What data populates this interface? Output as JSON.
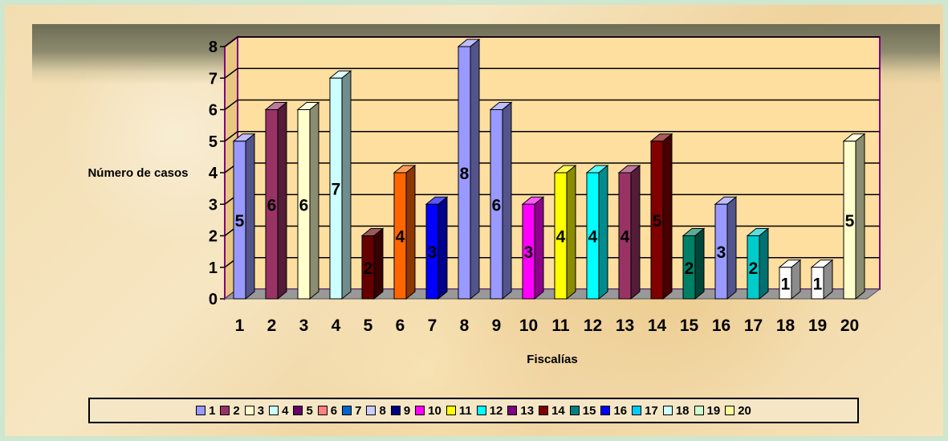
{
  "chart_data": {
    "type": "bar",
    "title": "",
    "xlabel": "Fiscalías",
    "ylabel": "Número de casos",
    "ylim": [
      0,
      8
    ],
    "yticks": [
      "0",
      "1",
      "2",
      "3",
      "4",
      "5",
      "6",
      "7",
      "8"
    ],
    "grid": true,
    "legend_position": "bottom",
    "categories": [
      "1",
      "2",
      "3",
      "4",
      "5",
      "6",
      "7",
      "8",
      "9",
      "10",
      "11",
      "12",
      "13",
      "14",
      "15",
      "16",
      "17",
      "18",
      "19",
      "20"
    ],
    "values": [
      5,
      6,
      6,
      7,
      2,
      4,
      3,
      8,
      6,
      3,
      4,
      4,
      4,
      5,
      2,
      3,
      2,
      1,
      1,
      5
    ],
    "data_labels": [
      "5",
      "6",
      "6",
      "7",
      "2",
      "4",
      "3",
      "8",
      "6",
      "3",
      "4",
      "4",
      "4",
      "5",
      "2",
      "3",
      "2",
      "1",
      "1",
      "5"
    ],
    "bar_colors": [
      "#9999ff",
      "#993366",
      "#ffffcc",
      "#ccffff",
      "#660000",
      "#ff6600",
      "#0000ff",
      "#9999ff",
      "#9999ff",
      "#ff00ff",
      "#ffff00",
      "#00ffff",
      "#993366",
      "#800000",
      "#008066",
      "#9999ff",
      "#00cccc",
      "#ffffff",
      "#ffffff",
      "#ffffcc"
    ],
    "legend": [
      {
        "label": "1",
        "color": "#9999ff"
      },
      {
        "label": "2",
        "color": "#993366"
      },
      {
        "label": "3",
        "color": "#ffffcc"
      },
      {
        "label": "4",
        "color": "#ccffff"
      },
      {
        "label": "5",
        "color": "#660066"
      },
      {
        "label": "6",
        "color": "#ff8080"
      },
      {
        "label": "7",
        "color": "#0066cc"
      },
      {
        "label": "8",
        "color": "#ccccff"
      },
      {
        "label": "9",
        "color": "#000080"
      },
      {
        "label": "10",
        "color": "#ff00ff"
      },
      {
        "label": "11",
        "color": "#ffff00"
      },
      {
        "label": "12",
        "color": "#00ffff"
      },
      {
        "label": "13",
        "color": "#800080"
      },
      {
        "label": "14",
        "color": "#800000"
      },
      {
        "label": "15",
        "color": "#008080"
      },
      {
        "label": "16",
        "color": "#0000ff"
      },
      {
        "label": "17",
        "color": "#00ccff"
      },
      {
        "label": "18",
        "color": "#ccffff"
      },
      {
        "label": "19",
        "color": "#ccffcc"
      },
      {
        "label": "20",
        "color": "#ffff99"
      }
    ],
    "colors": {
      "plot_background": "#ffdf9f",
      "axis_line": "#800080",
      "floor": "#999999",
      "gridline": "#000000"
    }
  }
}
